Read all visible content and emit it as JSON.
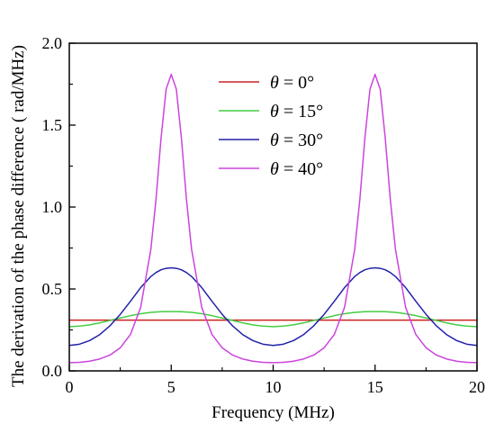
{
  "chart_data": {
    "type": "line",
    "title": "",
    "xlabel": "Frequency (MHz)",
    "ylabel": "The derivation of the phase difference ( rad/MHz)",
    "xlim": [
      0,
      20
    ],
    "ylim": [
      0,
      2.0
    ],
    "xticks": [
      0,
      5,
      10,
      15,
      20
    ],
    "yticks": [
      0.0,
      0.5,
      1.0,
      1.5,
      2.0
    ],
    "xtick_labels": [
      "0",
      "5",
      "10",
      "15",
      "20"
    ],
    "ytick_labels": [
      "0.0",
      "0.5",
      "1.0",
      "1.5",
      "2.0"
    ],
    "grid": false,
    "legend_position": "top-center",
    "x": [
      0,
      0.5,
      1,
      1.5,
      2,
      2.5,
      3,
      3.5,
      4,
      4.25,
      4.5,
      4.75,
      5,
      5.25,
      5.5,
      5.75,
      6,
      6.5,
      7,
      7.5,
      8,
      8.5,
      9,
      9.5,
      10,
      10.5,
      11,
      11.5,
      12,
      12.5,
      13,
      13.5,
      14,
      14.25,
      14.5,
      14.75,
      15,
      15.25,
      15.5,
      15.75,
      16,
      16.5,
      17,
      17.5,
      18,
      18.5,
      19,
      19.5,
      20
    ],
    "series": [
      {
        "name_symbol": "θ",
        "name_value": " = 0°",
        "color": "#cc2222",
        "values": [
          0.31,
          0.31,
          0.31,
          0.31,
          0.31,
          0.31,
          0.31,
          0.31,
          0.31,
          0.31,
          0.31,
          0.31,
          0.31,
          0.31,
          0.31,
          0.31,
          0.31,
          0.31,
          0.31,
          0.31,
          0.31,
          0.31,
          0.31,
          0.31,
          0.31,
          0.31,
          0.31,
          0.31,
          0.31,
          0.31,
          0.31,
          0.31,
          0.31,
          0.31,
          0.31,
          0.31,
          0.31,
          0.31,
          0.31,
          0.31,
          0.31,
          0.31,
          0.31,
          0.31,
          0.31,
          0.31,
          0.31,
          0.31,
          0.31
        ]
      },
      {
        "name_symbol": "θ",
        "name_value": " = 15°",
        "color": "#44cc44",
        "values": [
          0.27,
          0.273,
          0.281,
          0.293,
          0.308,
          0.323,
          0.337,
          0.349,
          0.357,
          0.359,
          0.361,
          0.362,
          0.362,
          0.362,
          0.361,
          0.359,
          0.357,
          0.349,
          0.337,
          0.323,
          0.308,
          0.293,
          0.281,
          0.273,
          0.27,
          0.273,
          0.281,
          0.293,
          0.308,
          0.323,
          0.337,
          0.349,
          0.357,
          0.359,
          0.361,
          0.362,
          0.362,
          0.362,
          0.361,
          0.359,
          0.357,
          0.349,
          0.337,
          0.323,
          0.308,
          0.293,
          0.281,
          0.273,
          0.27
        ]
      },
      {
        "name_symbol": "θ",
        "name_value": " = 30°",
        "color": "#2222aa",
        "values": [
          0.155,
          0.163,
          0.185,
          0.222,
          0.276,
          0.345,
          0.425,
          0.508,
          0.576,
          0.6,
          0.617,
          0.626,
          0.629,
          0.626,
          0.617,
          0.6,
          0.576,
          0.508,
          0.425,
          0.345,
          0.276,
          0.222,
          0.185,
          0.163,
          0.155,
          0.163,
          0.185,
          0.222,
          0.276,
          0.345,
          0.425,
          0.508,
          0.576,
          0.6,
          0.617,
          0.626,
          0.629,
          0.626,
          0.617,
          0.6,
          0.576,
          0.508,
          0.425,
          0.345,
          0.276,
          0.222,
          0.185,
          0.163,
          0.155
        ]
      },
      {
        "name_symbol": "θ",
        "name_value": " = 40°",
        "color": "#cc44dd",
        "values": [
          0.05,
          0.052,
          0.059,
          0.073,
          0.097,
          0.141,
          0.222,
          0.387,
          0.741,
          1.042,
          1.42,
          1.72,
          1.81,
          1.72,
          1.42,
          1.042,
          0.741,
          0.387,
          0.222,
          0.141,
          0.097,
          0.073,
          0.059,
          0.052,
          0.05,
          0.052,
          0.059,
          0.073,
          0.097,
          0.141,
          0.222,
          0.387,
          0.741,
          1.042,
          1.42,
          1.72,
          1.81,
          1.72,
          1.42,
          1.042,
          0.741,
          0.387,
          0.222,
          0.141,
          0.097,
          0.073,
          0.059,
          0.052,
          0.05
        ]
      }
    ]
  }
}
